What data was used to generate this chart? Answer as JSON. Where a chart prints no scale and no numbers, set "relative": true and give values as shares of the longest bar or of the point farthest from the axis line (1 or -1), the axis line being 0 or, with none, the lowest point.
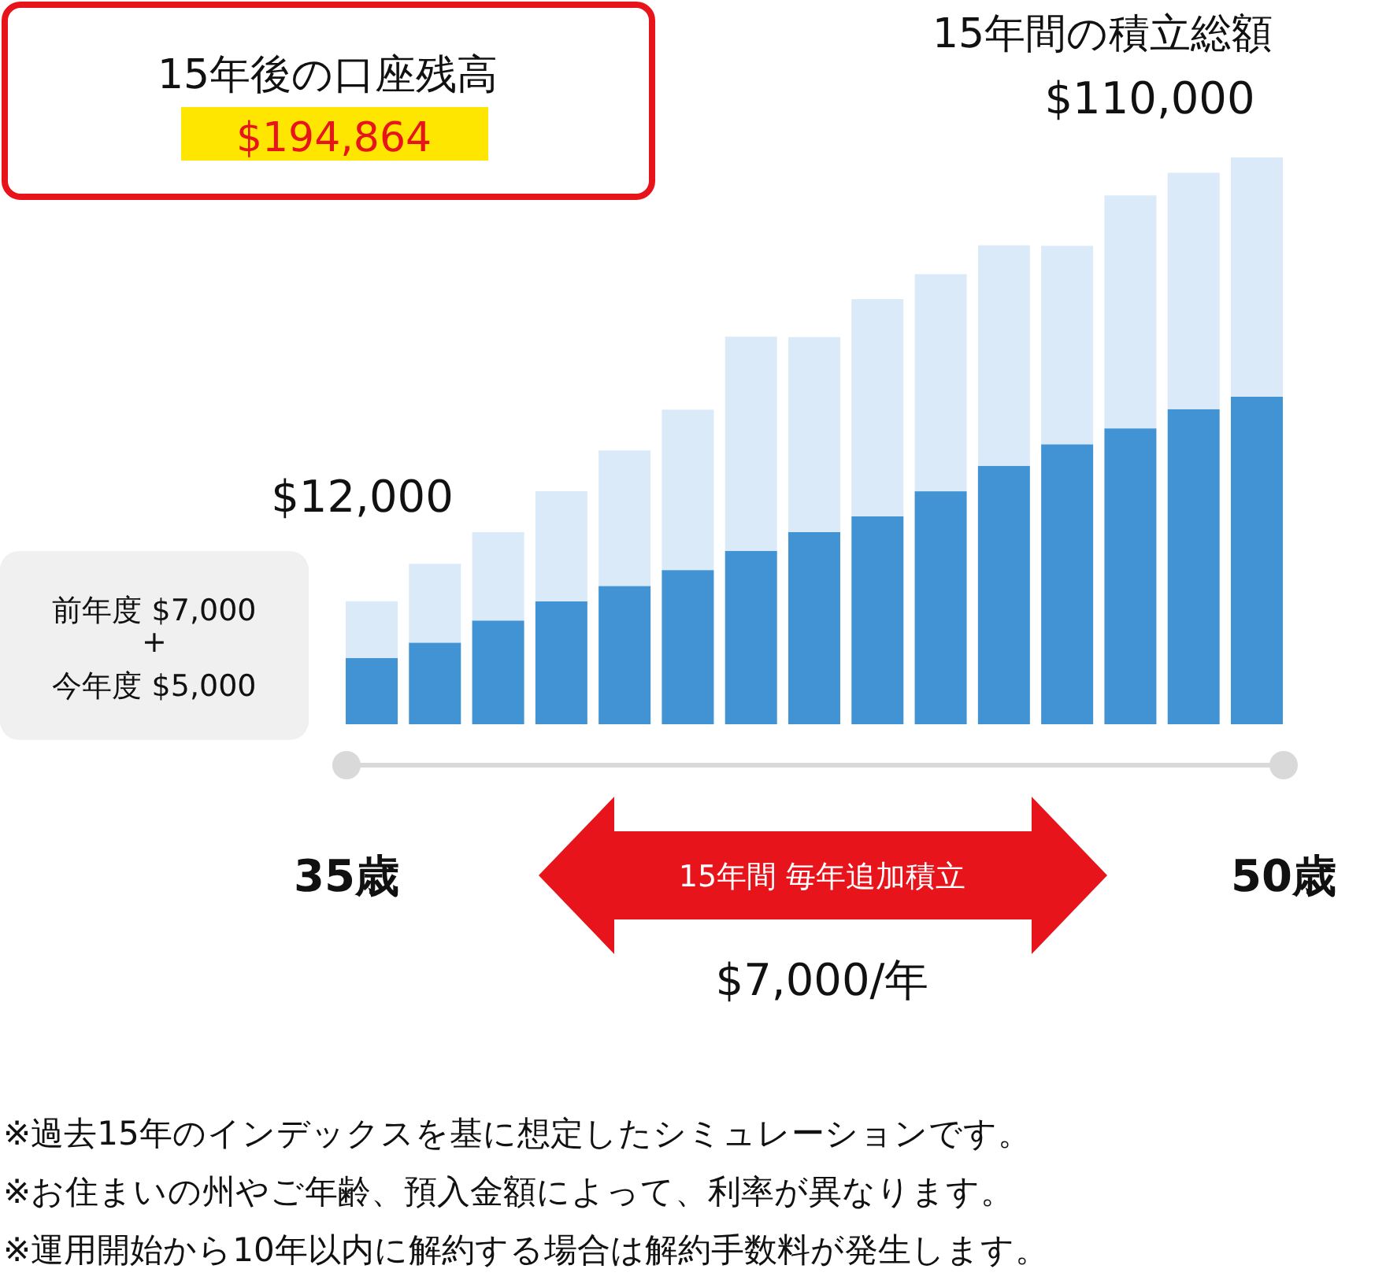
{
  "chart_data": {
    "type": "bar",
    "stacked": true,
    "relative": true,
    "title": "15年後の口座残高",
    "subtitle": "$194,864",
    "categories": [
      "35歳",
      null,
      null,
      null,
      null,
      null,
      null,
      null,
      null,
      null,
      null,
      null,
      null,
      null,
      "50歳"
    ],
    "series": [
      {
        "color": "#4193d3",
        "values": [
          0.117,
          0.144,
          0.183,
          0.217,
          0.244,
          0.272,
          0.306,
          0.339,
          0.367,
          0.411,
          0.456,
          0.494,
          0.522,
          0.556,
          0.578
        ]
      },
      {
        "color": "#dbeaf8",
        "values": [
          0.1,
          0.139,
          0.156,
          0.194,
          0.239,
          0.283,
          0.378,
          0.344,
          0.383,
          0.383,
          0.389,
          0.35,
          0.411,
          0.417,
          0.422
        ]
      }
    ],
    "annotations": [
      "15年間の積立総額",
      "$110,000",
      "$12,000",
      "前年度 $7,000",
      "+",
      "今年度 $5,000",
      "15年間 毎年追加積立",
      "$7,000/年",
      "※過去15年のインデックスを基に想定したシミュレーションです。",
      "※お住まいの州やご年齢、預入金額によって、利率が異なります。",
      "※運用開始から10年以内に解約する場合は解約手数料が発生します。"
    ]
  }
}
